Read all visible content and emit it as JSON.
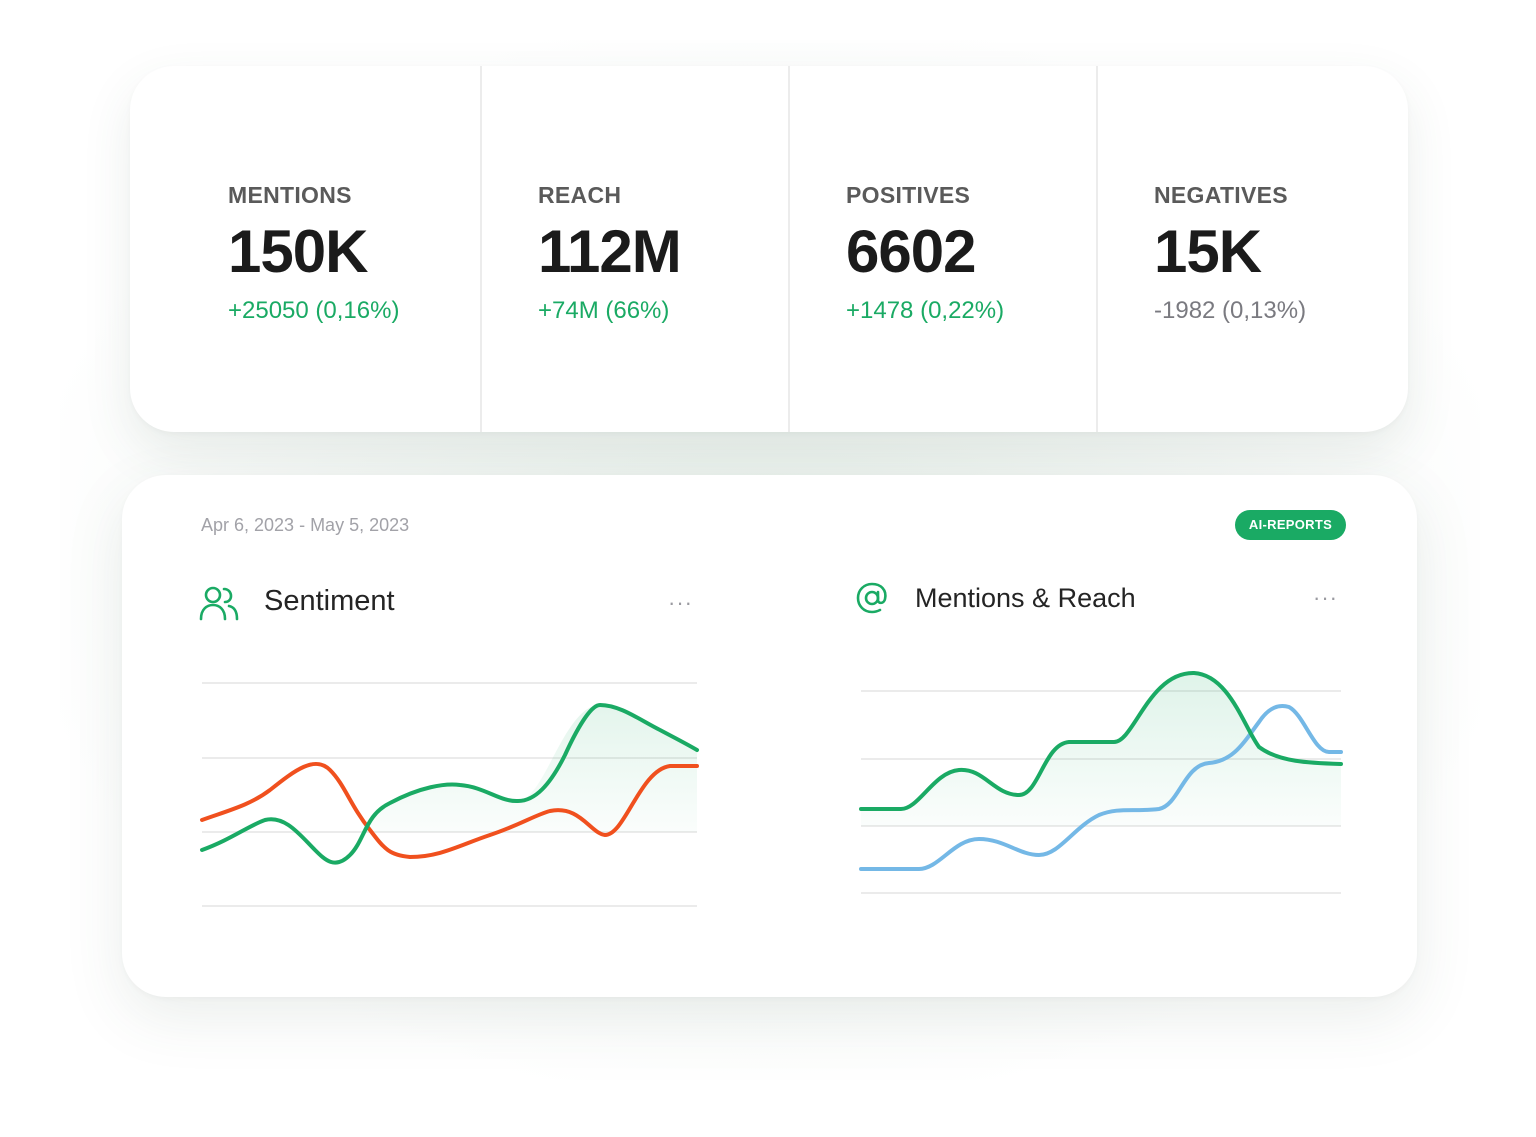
{
  "stats": [
    {
      "label": "MENTIONS",
      "value": "150K",
      "change": "+25050 (0,16%)",
      "trend": "positive"
    },
    {
      "label": "REACH",
      "value": "112M",
      "change": "+74M (66%)",
      "trend": "positive"
    },
    {
      "label": "POSITIVES",
      "value": "6602",
      "change": "+1478 (0,22%)",
      "trend": "positive"
    },
    {
      "label": "NEGATIVES",
      "value": "15K",
      "change": "-1982 (0,13%)",
      "trend": "neutral"
    }
  ],
  "report": {
    "date_range": "Apr 6, 2023 - May 5, 2023",
    "badge": "AI-REPORTS",
    "more_label": "···"
  },
  "panels": {
    "sentiment": {
      "title": "Sentiment",
      "icon": "users-icon"
    },
    "mentions_reach": {
      "title": "Mentions & Reach",
      "icon": "at-sign-icon"
    }
  },
  "colors": {
    "accent": "#1aaa64",
    "negative_line": "#f0501e",
    "reach_line": "#74b8e6",
    "grid": "#ebebeb"
  }
}
